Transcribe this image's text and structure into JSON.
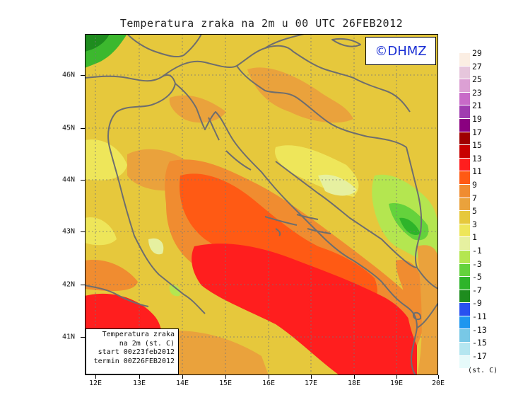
{
  "title": "Temperatura zraka na 2m u 00 UTC 26FEB2012",
  "logo": "©DHMZ",
  "info": {
    "line1": "Temperatura zraka",
    "line2": "na 2m (st. C)",
    "line3": "start 00z23feb2012",
    "line4": "termin 00Z26FEB2012"
  },
  "x_ticks": [
    "12E",
    "13E",
    "14E",
    "15E",
    "16E",
    "17E",
    "18E",
    "19E",
    "20E"
  ],
  "y_ticks": [
    "46N",
    "45N",
    "44N",
    "43N",
    "42N",
    "41N"
  ],
  "legend": {
    "unit": "(st. C)",
    "labels": [
      "29",
      "27",
      "25",
      "23",
      "21",
      "19",
      "17",
      "15",
      "13",
      "11",
      "9",
      "7",
      "5",
      "3",
      "1",
      "-1",
      "-3",
      "-5",
      "-7",
      "-9",
      "-11",
      "-13",
      "-15",
      "-17"
    ],
    "colors": [
      "#fbeee3",
      "#e6c6dc",
      "#dca0d4",
      "#c86ac8",
      "#a03cb0",
      "#8a0080",
      "#9e0000",
      "#c80000",
      "#ff1e1e",
      "#ff5a14",
      "#f08c30",
      "#eaa23c",
      "#e6c83c",
      "#eee65a",
      "#e6f0a0",
      "#b4e650",
      "#64d23c",
      "#2eb42a",
      "#1e8c1e",
      "#2850f0",
      "#1e96ef",
      "#78c8e6",
      "#b4e6f0",
      "#e6fafa"
    ]
  },
  "colors": {
    "logo_text": "#1a2fd4",
    "coast": "#6e6e6e"
  }
}
